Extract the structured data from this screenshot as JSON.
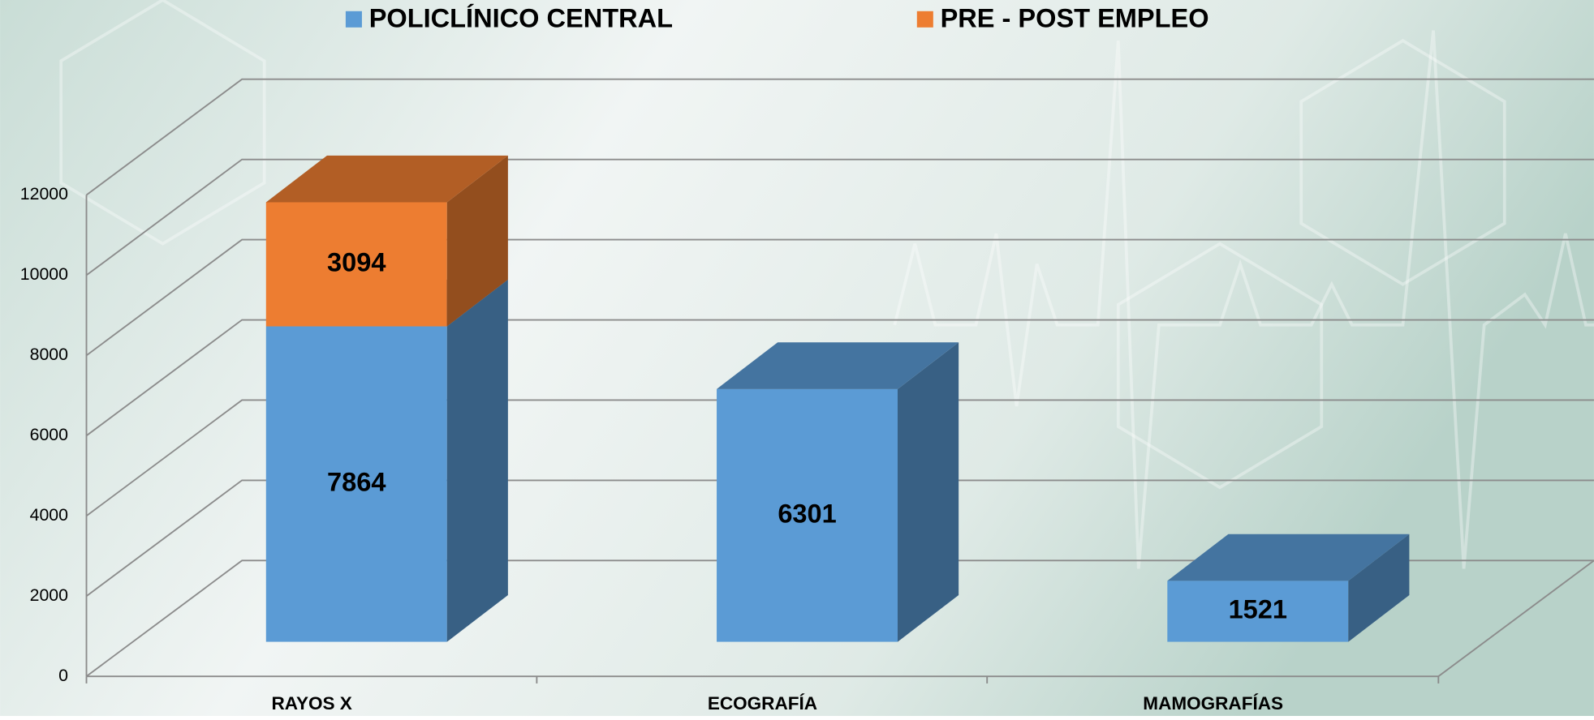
{
  "chart_data": {
    "type": "bar3d_stacked",
    "categories": [
      "RAYOS X",
      "ECOGRAFÍA",
      "MAMOGRAFÍAS"
    ],
    "series": [
      {
        "name": "POLICLÍNICO CENTRAL",
        "color": "#5b9bd5",
        "values": [
          7864,
          6301,
          1521
        ]
      },
      {
        "name": "PRE - POST EMPLEO",
        "color": "#ed7d31",
        "values": [
          3094,
          null,
          null
        ]
      }
    ],
    "ylim": [
      0,
      12000
    ],
    "yticks": [
      0,
      2000,
      4000,
      6000,
      8000,
      10000,
      12000
    ],
    "grid": true,
    "legend": "top"
  }
}
